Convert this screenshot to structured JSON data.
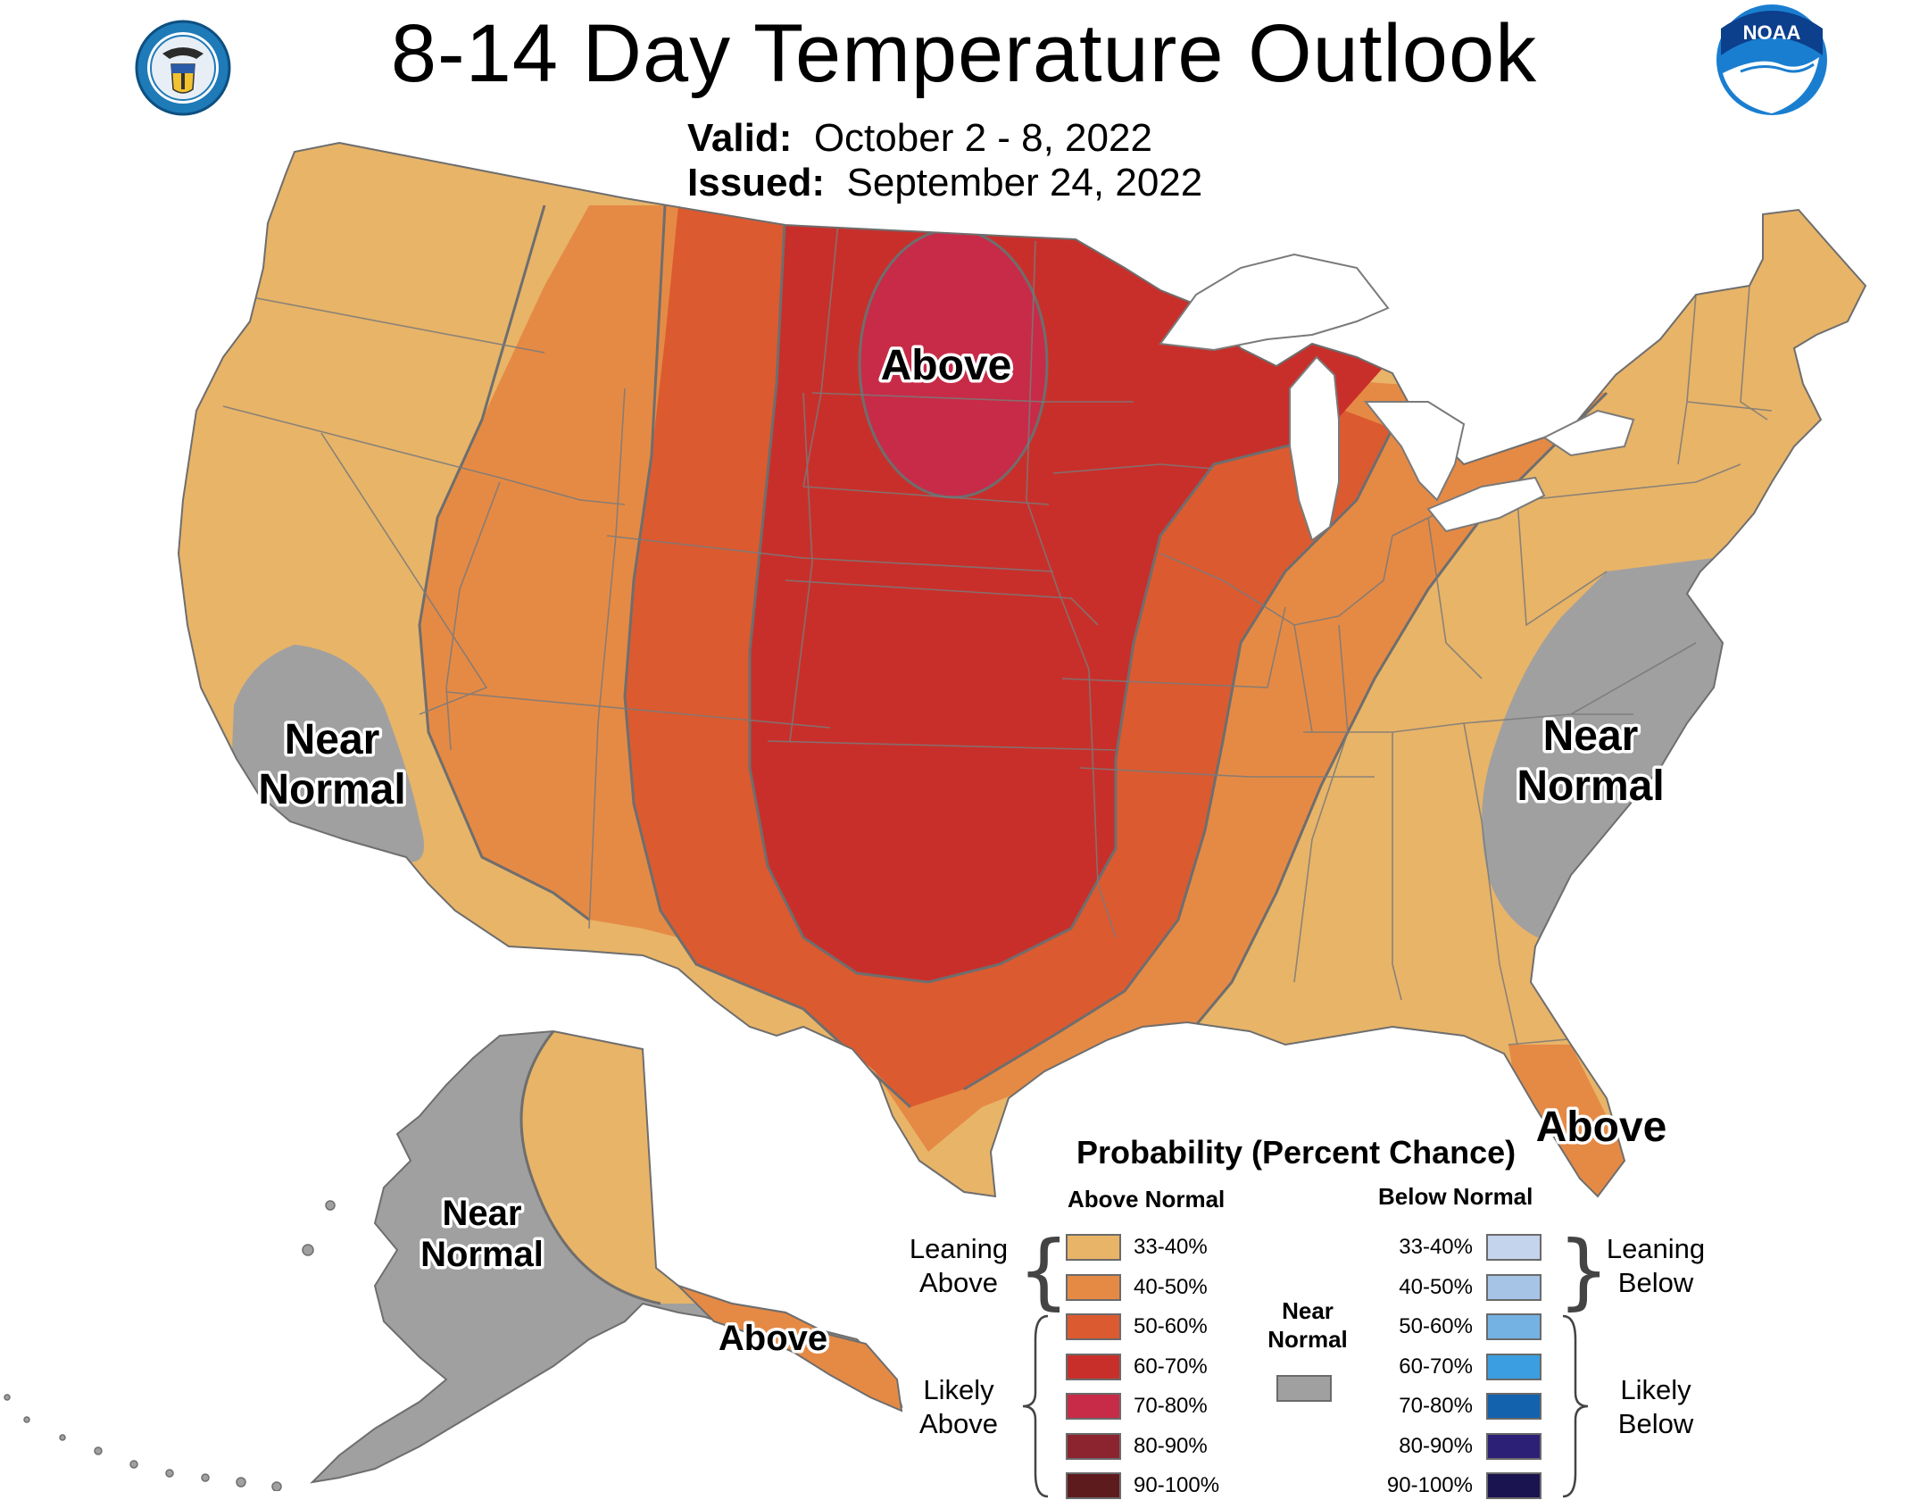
{
  "header": {
    "title": "8-14 Day Temperature Outlook",
    "valid_label": "Valid:",
    "valid_value": "October 2 - 8, 2022",
    "issued_label": "Issued:",
    "issued_value": "September 24, 2022"
  },
  "logos": {
    "left": "department-of-commerce-seal",
    "right": "noaa-logo",
    "right_text": "NOAA"
  },
  "map_labels": {
    "above_north": "Above",
    "near_normal_ca_1": "Near",
    "near_normal_ca_2": "Normal",
    "near_normal_se_1": "Near",
    "near_normal_se_2": "Normal",
    "above_fl": "Above",
    "near_normal_ak_1": "Near",
    "near_normal_ak_2": "Normal",
    "above_ak": "Above"
  },
  "legend": {
    "title": "Probability (Percent Chance)",
    "above_header": "Above Normal",
    "below_header": "Below Normal",
    "leaning_above_1": "Leaning",
    "leaning_above_2": "Above",
    "likely_above_1": "Likely",
    "likely_above_2": "Above",
    "leaning_below_1": "Leaning",
    "leaning_below_2": "Below",
    "likely_below_1": "Likely",
    "likely_below_2": "Below",
    "near_normal_1": "Near",
    "near_normal_2": "Normal",
    "near_normal_color": "#a0a0a0",
    "above": [
      {
        "label": "33-40%",
        "color": "#e8b468"
      },
      {
        "label": "40-50%",
        "color": "#e58a45"
      },
      {
        "label": "50-60%",
        "color": "#dc5a30"
      },
      {
        "label": "60-70%",
        "color": "#c92f2a"
      },
      {
        "label": "70-80%",
        "color": "#c82b47"
      },
      {
        "label": "80-90%",
        "color": "#8c2430"
      },
      {
        "label": "90-100%",
        "color": "#5e1b1e"
      }
    ],
    "below": [
      {
        "label": "33-40%",
        "color": "#c4d4ec"
      },
      {
        "label": "40-50%",
        "color": "#a5c4e6"
      },
      {
        "label": "50-60%",
        "color": "#74b2e4"
      },
      {
        "label": "60-70%",
        "color": "#3a9ee0"
      },
      {
        "label": "70-80%",
        "color": "#1262ae"
      },
      {
        "label": "80-90%",
        "color": "#2c2076"
      },
      {
        "label": "90-100%",
        "color": "#1a1450"
      }
    ]
  }
}
